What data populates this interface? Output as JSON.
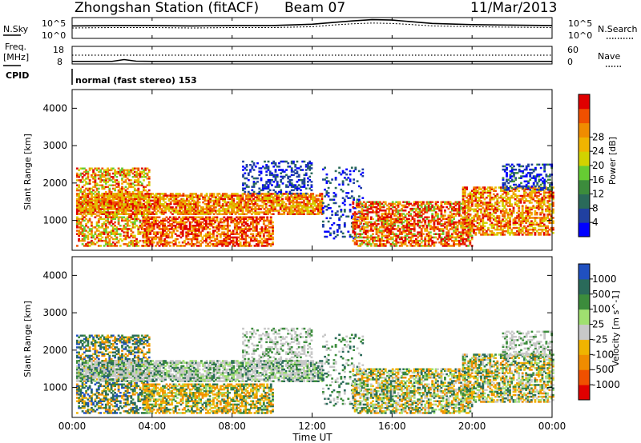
{
  "header": {
    "station": "Zhongshan Station (fitACF)",
    "beam": "Beam 07",
    "date": "11/Mar/2013"
  },
  "noise_panel": {
    "left_label": "N.Sky",
    "right_label": "N.Search",
    "left_ticks": [
      "10^5",
      "10^0"
    ],
    "right_ticks": [
      "10^5",
      "10^0"
    ]
  },
  "freq_panel": {
    "left_label_1": "Freq.",
    "left_label_2": "[MHz]",
    "left_ticks": [
      "18",
      "8"
    ],
    "right_label": "Nave",
    "right_ticks": [
      "60",
      "0"
    ]
  },
  "cpid": {
    "label": "CPID",
    "text": "normal (fast stereo) 153"
  },
  "x_axis": {
    "label": "Time UT",
    "ticks": [
      "00:00",
      "04:00",
      "08:00",
      "12:00",
      "16:00",
      "20:00",
      "00:00"
    ]
  },
  "colors": {
    "velocity_palette": [
      "#e00000",
      "#f05000",
      "#f08c00",
      "#f0b400",
      "#c8c8c8",
      "#a0e070",
      "#3c8c3c",
      "#2a6a5a",
      "#2050c0"
    ],
    "power_palette": [
      "#0000ff",
      "#2040a0",
      "#2a6a5a",
      "#3c8c3c",
      "#66cc33",
      "#d2d200",
      "#f0b400",
      "#f08c00",
      "#f05000",
      "#e00000"
    ]
  },
  "chart_data": [
    {
      "type": "line",
      "name": "noise",
      "x_range": [
        0,
        24
      ],
      "series": [
        {
          "name": "N.Sky",
          "x": [
            0,
            2,
            4,
            6,
            8,
            10,
            12,
            13,
            14,
            15,
            16,
            17,
            18,
            20,
            22,
            24
          ],
          "y": [
            3.0,
            3.1,
            3.1,
            3.0,
            3.1,
            3.1,
            3.4,
            3.8,
            4.2,
            4.5,
            4.4,
            4.0,
            3.6,
            3.3,
            3.2,
            3.1
          ]
        },
        {
          "name": "N.Search",
          "x": [
            0,
            2,
            4,
            6,
            8,
            10,
            12,
            13,
            14,
            15,
            16,
            17,
            18,
            20,
            22,
            24
          ],
          "y": [
            2.5,
            2.6,
            2.6,
            2.5,
            2.6,
            2.6,
            2.8,
            3.2,
            3.5,
            3.7,
            3.6,
            3.3,
            3.0,
            2.8,
            2.7,
            2.6
          ]
        }
      ],
      "ylim": [
        0,
        5
      ]
    },
    {
      "type": "line",
      "name": "frequency-nave",
      "x_range": [
        0,
        24
      ],
      "series": [
        {
          "name": "Freq.",
          "x": [
            0,
            2,
            2.6,
            3.2,
            4,
            24
          ],
          "y": [
            9.5,
            9.5,
            10.5,
            9.6,
            9.5,
            9.5
          ]
        },
        {
          "name": "Nave",
          "x": [
            0,
            24
          ],
          "y": [
            30,
            30
          ]
        }
      ]
    },
    {
      "type": "heatmap",
      "name": "power",
      "title": "",
      "ylabel": "Slant Range [km]",
      "xlabel": "Time UT",
      "x_range": [
        0,
        24
      ],
      "ylim": [
        200,
        4500
      ],
      "y_ticks": [
        1000,
        2000,
        3000,
        4000
      ],
      "colorbar": {
        "label": "Power [dB]",
        "ticks": [
          4,
          8,
          12,
          16,
          20,
          24,
          28
        ]
      }
    },
    {
      "type": "heatmap",
      "name": "velocity",
      "title": "",
      "ylabel": "Slant Range [km]",
      "xlabel": "Time UT",
      "x_range": [
        0,
        24
      ],
      "ylim": [
        200,
        4500
      ],
      "y_ticks": [
        1000,
        2000,
        3000,
        4000
      ],
      "colorbar": {
        "label": "Velocity [m s^-1]",
        "ticks": [
          1000,
          500,
          100,
          25,
          -25,
          -100,
          -500,
          -1000
        ]
      }
    }
  ]
}
